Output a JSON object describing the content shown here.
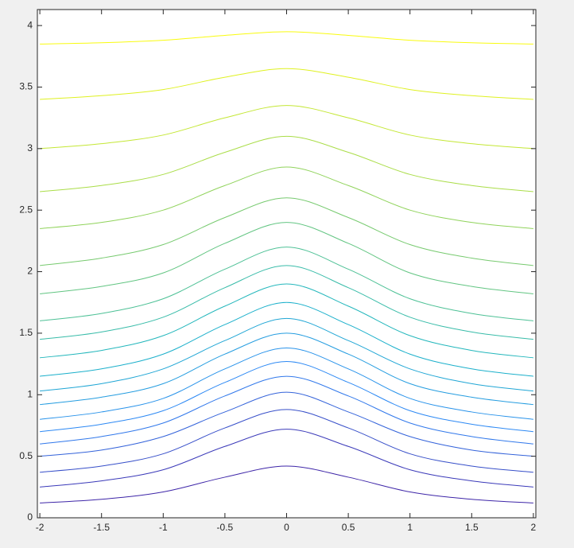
{
  "chart_data": {
    "type": "contour",
    "x": [
      -2,
      -1.5,
      -1,
      -0.5,
      0,
      0.5,
      1,
      1.5,
      2
    ],
    "series": [
      {
        "values": [
          0.12,
          0.15,
          0.21,
          0.33,
          0.42,
          0.33,
          0.21,
          0.15,
          0.12
        ]
      },
      {
        "values": [
          0.25,
          0.3,
          0.39,
          0.58,
          0.72,
          0.58,
          0.39,
          0.3,
          0.25
        ]
      },
      {
        "values": [
          0.37,
          0.42,
          0.52,
          0.73,
          0.88,
          0.73,
          0.52,
          0.42,
          0.37
        ]
      },
      {
        "values": [
          0.5,
          0.55,
          0.66,
          0.86,
          1.02,
          0.86,
          0.66,
          0.55,
          0.5
        ]
      },
      {
        "values": [
          0.6,
          0.66,
          0.77,
          0.99,
          1.15,
          0.99,
          0.77,
          0.66,
          0.6
        ]
      },
      {
        "values": [
          0.7,
          0.76,
          0.87,
          1.1,
          1.27,
          1.1,
          0.87,
          0.76,
          0.7
        ]
      },
      {
        "values": [
          0.8,
          0.86,
          0.97,
          1.21,
          1.38,
          1.21,
          0.97,
          0.86,
          0.8
        ]
      },
      {
        "values": [
          0.92,
          0.98,
          1.09,
          1.33,
          1.5,
          1.33,
          1.09,
          0.98,
          0.92
        ]
      },
      {
        "values": [
          1.03,
          1.09,
          1.21,
          1.44,
          1.62,
          1.44,
          1.21,
          1.09,
          1.03
        ]
      },
      {
        "values": [
          1.15,
          1.21,
          1.33,
          1.57,
          1.75,
          1.57,
          1.33,
          1.21,
          1.15
        ]
      },
      {
        "values": [
          1.3,
          1.36,
          1.48,
          1.72,
          1.9,
          1.72,
          1.48,
          1.36,
          1.3
        ]
      },
      {
        "values": [
          1.45,
          1.51,
          1.63,
          1.87,
          2.05,
          1.87,
          1.63,
          1.51,
          1.45
        ]
      },
      {
        "values": [
          1.6,
          1.66,
          1.78,
          2.02,
          2.2,
          2.02,
          1.78,
          1.66,
          1.6
        ]
      },
      {
        "values": [
          1.82,
          1.88,
          1.99,
          2.23,
          2.4,
          2.23,
          1.99,
          1.88,
          1.82
        ]
      },
      {
        "values": [
          2.05,
          2.11,
          2.22,
          2.44,
          2.6,
          2.44,
          2.22,
          2.11,
          2.05
        ]
      },
      {
        "values": [
          2.35,
          2.4,
          2.5,
          2.7,
          2.85,
          2.7,
          2.5,
          2.4,
          2.35
        ]
      },
      {
        "values": [
          2.65,
          2.7,
          2.79,
          2.97,
          3.1,
          2.97,
          2.79,
          2.7,
          2.65
        ]
      },
      {
        "values": [
          3.0,
          3.04,
          3.11,
          3.25,
          3.35,
          3.25,
          3.11,
          3.04,
          3.0
        ]
      },
      {
        "values": [
          3.4,
          3.43,
          3.48,
          3.58,
          3.65,
          3.58,
          3.48,
          3.43,
          3.4
        ]
      },
      {
        "values": [
          3.85,
          3.86,
          3.88,
          3.92,
          3.95,
          3.92,
          3.88,
          3.86,
          3.85
        ]
      }
    ],
    "colormap": [
      "#3e26a8",
      "#2e87f7",
      "#1ab5c6",
      "#7ccb6a",
      "#f9fb0e"
    ],
    "xlim": [
      -2.02,
      2.02
    ],
    "ylim": [
      0,
      4.13
    ],
    "xticks": [
      -2,
      -1.5,
      -1,
      -0.5,
      0,
      0.5,
      1,
      1.5,
      2
    ],
    "yticks": [
      0,
      0.5,
      1,
      1.5,
      2,
      2.5,
      3,
      3.5,
      4
    ]
  }
}
